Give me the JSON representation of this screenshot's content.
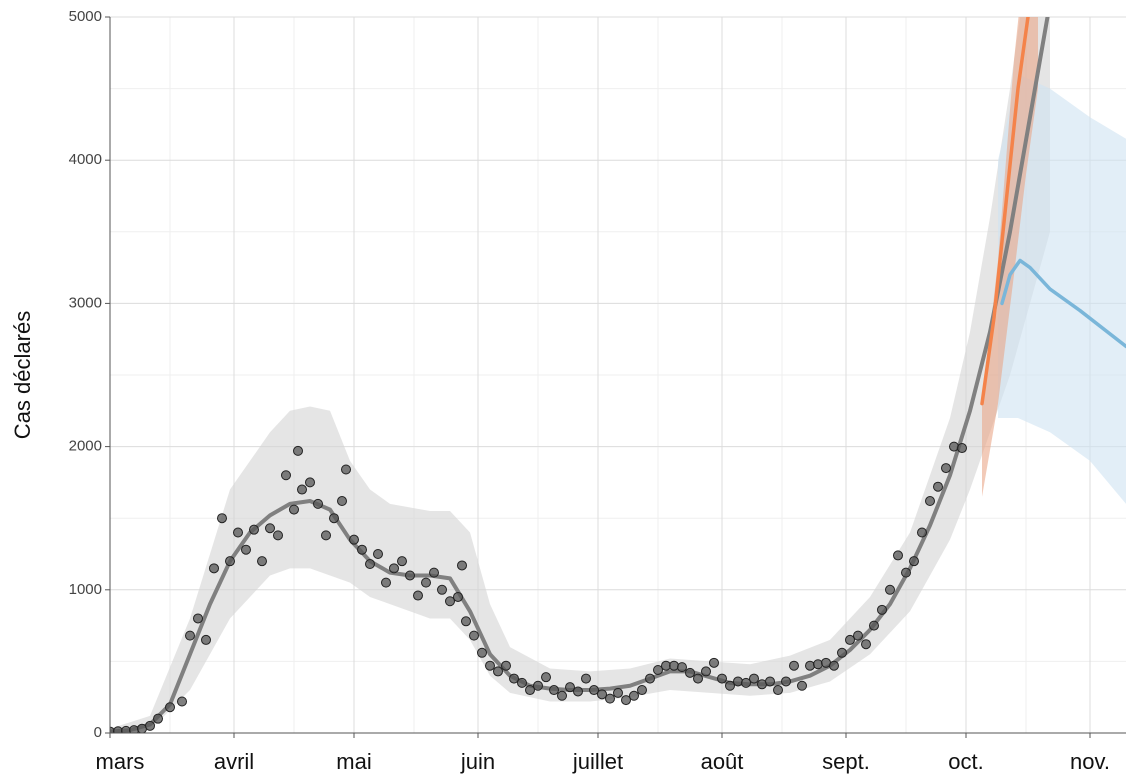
{
  "chart_data": {
    "type": "line",
    "y_label": "Cas déclarés",
    "xlim": [
      0,
      254
    ],
    "ylim": [
      0,
      5000
    ],
    "xticks": [
      {
        "value": 0,
        "label": "mars"
      },
      {
        "value": 31,
        "label": "avril"
      },
      {
        "value": 61,
        "label": "mai"
      },
      {
        "value": 92,
        "label": "juin"
      },
      {
        "value": 122,
        "label": "juillet"
      },
      {
        "value": 153,
        "label": "août"
      },
      {
        "value": 184,
        "label": "sept."
      },
      {
        "value": 214,
        "label": "oct."
      },
      {
        "value": 245,
        "label": "nov."
      }
    ],
    "xminor_ticks": [
      15,
      46,
      76,
      107,
      137,
      168,
      199,
      229
    ],
    "yticks": [
      0,
      1000,
      2000,
      3000,
      4000,
      5000
    ],
    "yminor_ticks": [
      500,
      1500,
      2500,
      3500,
      4500
    ],
    "grid": true,
    "series": [
      {
        "kind": "band",
        "color": "#d4d4d4",
        "x": [
          0,
          10,
          20,
          30,
          40,
          45,
          50,
          55,
          60,
          65,
          70,
          80,
          85,
          90,
          95,
          100,
          110,
          120,
          130,
          140,
          150,
          160,
          170,
          180,
          190,
          200,
          205,
          210,
          215,
          220,
          225,
          230,
          235
        ],
        "lower": [
          0,
          20,
          300,
          800,
          1100,
          1150,
          1150,
          1100,
          1050,
          950,
          900,
          800,
          800,
          650,
          400,
          280,
          220,
          220,
          250,
          300,
          280,
          260,
          280,
          360,
          550,
          850,
          1100,
          1350,
          1700,
          2100,
          2500,
          3000,
          3500
        ],
        "upper": [
          30,
          120,
          800,
          1700,
          2100,
          2250,
          2280,
          2250,
          1900,
          1700,
          1600,
          1550,
          1550,
          1400,
          900,
          600,
          450,
          430,
          450,
          520,
          500,
          480,
          540,
          650,
          950,
          1400,
          1800,
          2200,
          2800,
          3600,
          4500,
          5500,
          6500
        ]
      },
      {
        "kind": "band",
        "color": "#cfe3f2",
        "x": [
          222,
          227,
          235,
          245,
          254
        ],
        "lower": [
          2200,
          2200,
          2100,
          1900,
          1600
        ],
        "upper": [
          4000,
          4600,
          4500,
          4300,
          4150
        ]
      },
      {
        "kind": "band",
        "color": "#e9a688",
        "x": [
          218,
          222,
          226,
          229,
          232
        ],
        "lower": [
          1650,
          2300,
          3200,
          3900,
          4500
        ],
        "upper": [
          2300,
          3300,
          4700,
          5500,
          6000
        ]
      },
      {
        "kind": "line",
        "color": "#808080",
        "width": 4,
        "x": [
          0,
          5,
          10,
          15,
          20,
          25,
          30,
          35,
          40,
          45,
          50,
          55,
          60,
          65,
          70,
          75,
          80,
          85,
          90,
          95,
          100,
          105,
          110,
          115,
          120,
          125,
          130,
          135,
          140,
          145,
          150,
          155,
          160,
          165,
          170,
          175,
          180,
          185,
          190,
          195,
          200,
          205,
          210,
          215,
          220,
          225,
          230,
          235
        ],
        "values": [
          10,
          20,
          60,
          200,
          550,
          900,
          1200,
          1400,
          1520,
          1600,
          1620,
          1560,
          1350,
          1200,
          1120,
          1100,
          1100,
          1080,
          850,
          550,
          400,
          330,
          310,
          300,
          300,
          310,
          330,
          380,
          430,
          430,
          390,
          350,
          340,
          340,
          360,
          400,
          470,
          580,
          720,
          900,
          1150,
          1450,
          1800,
          2250,
          2800,
          3500,
          4300,
          5100
        ]
      },
      {
        "kind": "scatter",
        "color": "#555555",
        "x": [
          0,
          2,
          4,
          6,
          8,
          10,
          12,
          15,
          18,
          20,
          22,
          24,
          26,
          28,
          30,
          32,
          34,
          36,
          38,
          40,
          42,
          44,
          46,
          47,
          48,
          50,
          52,
          54,
          56,
          58,
          59,
          61,
          63,
          65,
          67,
          69,
          71,
          73,
          75,
          77,
          79,
          81,
          83,
          85,
          87,
          88,
          89,
          91,
          93,
          95,
          97,
          99,
          101,
          103,
          105,
          107,
          109,
          111,
          113,
          115,
          117,
          119,
          121,
          123,
          125,
          127,
          129,
          131,
          133,
          135,
          137,
          139,
          141,
          143,
          145,
          147,
          149,
          151,
          153,
          155,
          157,
          159,
          161,
          163,
          165,
          167,
          169,
          171,
          173,
          175,
          177,
          179,
          181,
          183,
          185,
          187,
          189,
          191,
          193,
          195,
          197,
          199,
          201,
          203,
          205,
          207,
          209,
          211,
          213
        ],
        "values": [
          10,
          12,
          15,
          20,
          30,
          50,
          100,
          180,
          220,
          680,
          800,
          650,
          1150,
          1500,
          1200,
          1400,
          1280,
          1420,
          1200,
          1430,
          1380,
          1800,
          1560,
          1970,
          1700,
          1750,
          1600,
          1380,
          1500,
          1620,
          1840,
          1350,
          1280,
          1180,
          1250,
          1050,
          1150,
          1200,
          1100,
          960,
          1050,
          1120,
          1000,
          920,
          950,
          1170,
          780,
          680,
          560,
          470,
          430,
          470,
          380,
          350,
          300,
          330,
          390,
          300,
          260,
          320,
          290,
          380,
          300,
          270,
          240,
          280,
          230,
          260,
          300,
          380,
          440,
          470,
          470,
          460,
          420,
          380,
          430,
          490,
          380,
          330,
          360,
          350,
          380,
          340,
          360,
          300,
          360,
          470,
          330,
          470,
          480,
          490,
          470,
          560,
          650,
          680,
          620,
          750,
          860,
          1000,
          1240,
          1120,
          1200,
          1400,
          1620,
          1720,
          1850,
          2000,
          1990
        ]
      },
      {
        "kind": "line",
        "color": "#f4834a",
        "width": 3.5,
        "x": [
          218,
          221,
          224,
          227,
          230
        ],
        "values": [
          2300,
          2900,
          3700,
          4500,
          5100
        ]
      },
      {
        "kind": "line",
        "color": "#7ab6d9",
        "width": 3.5,
        "x": [
          223,
          225,
          227.5,
          230,
          235,
          242.5,
          254
        ],
        "values": [
          3000,
          3200,
          3300,
          3250,
          3100,
          2950,
          2700
        ]
      }
    ]
  }
}
